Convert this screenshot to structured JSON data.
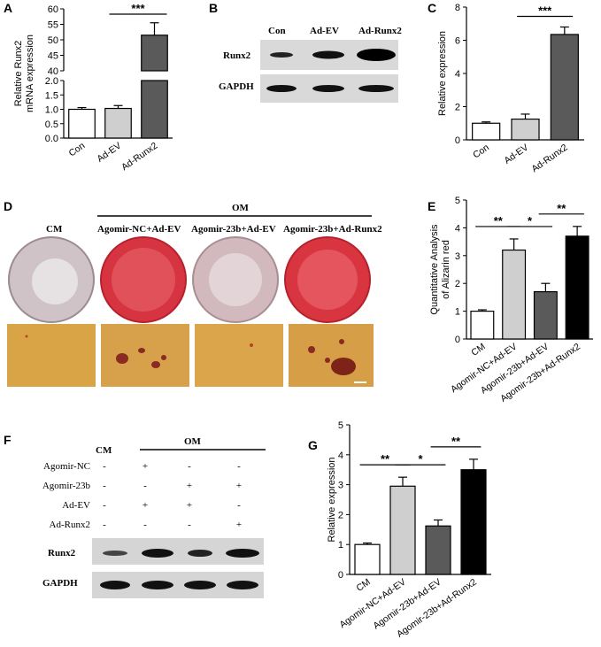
{
  "panels": {
    "A": "A",
    "B": "B",
    "C": "C",
    "D": "D",
    "E": "E",
    "F": "F",
    "G": "G"
  },
  "colors": {
    "con": "#ffffff",
    "ev": "#cfcfcf",
    "runx2": "#5a5a5a",
    "black": "#000000",
    "dish_white": "#d9c8cc",
    "dish_red": "#d83a44",
    "micro_bg": "#d8a24a",
    "micro_spot": "#8a2a1e"
  },
  "chart_data": [
    {
      "panel": "A",
      "type": "bar",
      "categories": [
        "Con",
        "Ad-EV",
        "Ad-Runx2"
      ],
      "values": [
        1.0,
        1.03,
        51.5
      ],
      "errors": [
        0.06,
        0.1,
        4.0
      ],
      "ylabel": "Relative Runx2 mRNA expression",
      "ylim": [
        0,
        60
      ],
      "axis_break": {
        "lower": [
          0,
          2.0
        ],
        "upper": [
          40,
          60
        ]
      },
      "yticks_lower": [
        "0.0",
        "0.5",
        "1.0",
        "1.5",
        "2.0"
      ],
      "yticks_upper": [
        "40",
        "45",
        "50",
        "55",
        "60"
      ],
      "significance": [
        {
          "from": "Con",
          "to": "Ad-Runx2",
          "label": "***"
        }
      ]
    },
    {
      "panel": "C",
      "type": "bar",
      "categories": [
        "Con",
        "Ad-EV",
        "Ad-Runx2"
      ],
      "values": [
        1.0,
        1.25,
        6.35
      ],
      "errors": [
        0.08,
        0.3,
        0.45
      ],
      "ylabel": "Relative expression",
      "ylim": [
        0,
        8
      ],
      "yticks": [
        "0",
        "2",
        "4",
        "6",
        "8"
      ],
      "significance": [
        {
          "from": "Ad-EV",
          "to": "Ad-Runx2",
          "label": "***"
        }
      ]
    },
    {
      "panel": "E",
      "type": "bar",
      "categories": [
        "CM",
        "Agomir-NC+Ad-EV",
        "Agomir-23b+Ad-EV",
        "Agomir-23b+Ad-Runx2"
      ],
      "values": [
        1.0,
        3.2,
        1.7,
        3.7
      ],
      "errors": [
        0.05,
        0.4,
        0.3,
        0.35
      ],
      "ylabel": "Quantitative Analysis of Alizarin red",
      "ylim": [
        0,
        5
      ],
      "yticks": [
        "0",
        "1",
        "2",
        "3",
        "4",
        "5"
      ],
      "significance": [
        {
          "from": "CM",
          "to": "Agomir-NC+Ad-EV",
          "label": "**"
        },
        {
          "from": "Agomir-NC+Ad-EV",
          "to": "Agomir-23b+Ad-EV",
          "label": "*"
        },
        {
          "from": "Agomir-23b+Ad-EV",
          "to": "Agomir-23b+Ad-Runx2",
          "label": "**"
        }
      ]
    },
    {
      "panel": "G",
      "type": "bar",
      "categories": [
        "CM",
        "Agomir-NC+Ad-EV",
        "Agomir-23b+Ad-EV",
        "Agomir-23b+Ad-Runx2"
      ],
      "values": [
        1.0,
        2.95,
        1.62,
        3.5
      ],
      "errors": [
        0.05,
        0.3,
        0.2,
        0.35
      ],
      "ylabel": "Relative expression",
      "ylim": [
        0,
        5
      ],
      "yticks": [
        "0",
        "1",
        "2",
        "3",
        "4",
        "5"
      ],
      "significance": [
        {
          "from": "CM",
          "to": "Agomir-NC+Ad-EV",
          "label": "**"
        },
        {
          "from": "Agomir-NC+Ad-EV",
          "to": "Agomir-23b+Ad-EV",
          "label": "*"
        },
        {
          "from": "Agomir-23b+Ad-EV",
          "to": "Agomir-23b+Ad-Runx2",
          "label": "**"
        }
      ]
    }
  ],
  "blot_B": {
    "lanes": [
      "Con",
      "Ad-EV",
      "Ad-Runx2"
    ],
    "rows": [
      "Runx2",
      "GAPDH"
    ]
  },
  "panel_D": {
    "cm_label": "CM",
    "om_label": "OM",
    "groups": [
      "Agomir-NC+Ad-EV",
      "Agomir-23b+Ad-EV",
      "Agomir-23b+Ad-Runx2"
    ],
    "dish_staining": [
      "white",
      "red",
      "white",
      "red"
    ]
  },
  "panel_F": {
    "cm_label": "CM",
    "om_label": "OM",
    "treatments": [
      {
        "name": "Agomir-NC",
        "signs": [
          "-",
          "+",
          "-",
          "-"
        ]
      },
      {
        "name": "Agomir-23b",
        "signs": [
          "-",
          "-",
          "+",
          "+"
        ]
      },
      {
        "name": "Ad-EV",
        "signs": [
          "-",
          "+",
          "+",
          "-"
        ]
      },
      {
        "name": "Ad-Runx2",
        "signs": [
          "-",
          "-",
          "-",
          "+"
        ]
      }
    ],
    "rows": [
      "Runx2",
      "GAPDH"
    ]
  }
}
